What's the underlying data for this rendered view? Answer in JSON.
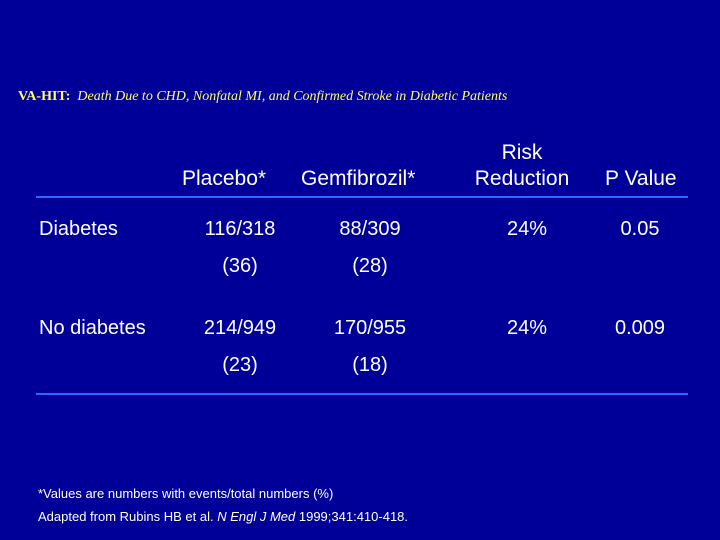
{
  "title": {
    "prefix": "VA-HIT:",
    "text": "Death Due to CHD, Nonfatal MI, and Confirmed Stroke in Diabetic Patients"
  },
  "columns": {
    "placebo": "Placebo*",
    "gemfibrozil": "Gemfibrozil*",
    "risk_line1": "Risk",
    "risk_line2": "Reduction",
    "pvalue": "P Value"
  },
  "rows": [
    {
      "label": "Diabetes",
      "placebo": "116/318",
      "placebo_pct": "(36)",
      "gemfibrozil": "88/309",
      "gemfibrozil_pct": "(28)",
      "risk_reduction": "24%",
      "p_value": "0.05"
    },
    {
      "label": "No diabetes",
      "placebo": "214/949",
      "placebo_pct": "(23)",
      "gemfibrozil": "170/955",
      "gemfibrozil_pct": "(18)",
      "risk_reduction": "24%",
      "p_value": "0.009"
    }
  ],
  "footnotes": {
    "note": "*Values are numbers with events/total numbers (%)",
    "source_pre": "Adapted from Rubins HB et al. ",
    "source_journal": "N Engl J Med",
    "source_post": " 1999;341:410-418."
  },
  "colors": {
    "background": "#000099",
    "title": "#ffff66",
    "rule": "#3366ff",
    "text": "#ffffff"
  }
}
